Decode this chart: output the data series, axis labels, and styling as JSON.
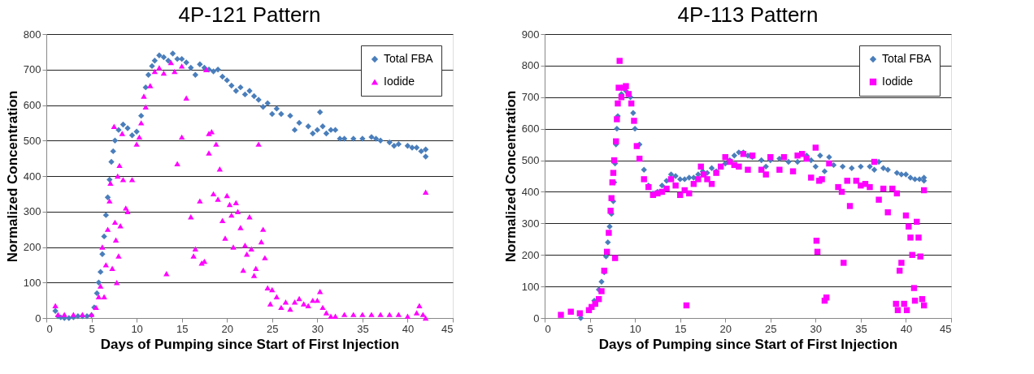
{
  "chart_data": [
    {
      "type": "scatter",
      "title": "4P-121 Pattern",
      "xlabel": "Days of Pumping since Start of First Injection",
      "ylabel": "Normalized Concentration",
      "xlim": [
        0,
        45
      ],
      "xticks": [
        0,
        5,
        10,
        15,
        20,
        25,
        30,
        35,
        40,
        45
      ],
      "ylim": [
        0,
        800
      ],
      "yticks": [
        0,
        100,
        200,
        300,
        400,
        500,
        600,
        700,
        800
      ],
      "grid": "y",
      "legend": "top right",
      "series": [
        {
          "name": "Total FBA",
          "color": "#4a7ebb",
          "marker": "diamond",
          "x": [
            1,
            1.3,
            1.6,
            2,
            2.5,
            3,
            3.5,
            4,
            4.5,
            5,
            5.3,
            5.6,
            5.8,
            6,
            6.2,
            6.4,
            6.6,
            6.8,
            7,
            7.2,
            7.4,
            7.6,
            8,
            8.5,
            9,
            9.5,
            10,
            10.5,
            11,
            11.3,
            11.7,
            12,
            12.5,
            13,
            13.5,
            14,
            14.5,
            15,
            15.5,
            16,
            16.5,
            17,
            17.5,
            18,
            18.5,
            19,
            19.5,
            20,
            20.5,
            21,
            21.5,
            22,
            22.5,
            23,
            23.5,
            24,
            24.5,
            25,
            25.5,
            26,
            27,
            27.5,
            28,
            29,
            29.5,
            30,
            30.3,
            30.6,
            31,
            31.5,
            32,
            32.5,
            33,
            34,
            35,
            36,
            36.5,
            37,
            38,
            38.5,
            39,
            40,
            40.5,
            41,
            41.5,
            42,
            42
          ],
          "values": [
            20,
            5,
            2,
            0,
            0,
            2,
            5,
            5,
            5,
            8,
            30,
            70,
            100,
            130,
            180,
            230,
            290,
            340,
            390,
            440,
            470,
            500,
            530,
            545,
            535,
            515,
            525,
            570,
            650,
            685,
            710,
            725,
            740,
            735,
            725,
            745,
            730,
            730,
            720,
            705,
            685,
            715,
            705,
            700,
            695,
            700,
            680,
            670,
            655,
            640,
            650,
            630,
            640,
            625,
            615,
            595,
            605,
            575,
            590,
            575,
            570,
            530,
            550,
            540,
            520,
            530,
            580,
            540,
            520,
            530,
            530,
            505,
            505,
            505,
            505,
            510,
            505,
            500,
            495,
            485,
            490,
            485,
            480,
            480,
            470,
            475,
            455
          ]
        },
        {
          "name": "Iodide",
          "color": "#ff00ff",
          "marker": "triangle",
          "x": [
            1,
            1.3,
            2,
            3,
            4,
            5,
            5.5,
            5.8,
            6,
            6.2,
            6.4,
            6.6,
            6.8,
            7,
            7.1,
            7.3,
            7.5,
            7.6,
            7.7,
            7.8,
            7.9,
            8,
            8.1,
            8.2,
            8.4,
            8.5,
            8.8,
            9,
            9.5,
            10,
            10.3,
            10.5,
            10.8,
            11,
            11.5,
            12,
            12.5,
            13,
            13.3,
            13.8,
            14.2,
            14.5,
            15,
            15,
            15.5,
            16,
            16.3,
            16.5,
            17,
            17.2,
            17.5,
            17.7,
            18,
            18,
            18.3,
            18.5,
            18.8,
            19,
            19.2,
            19.5,
            19.8,
            20,
            20.3,
            20.5,
            20.7,
            21,
            21.2,
            21.5,
            21.8,
            22,
            22.2,
            22.5,
            22.7,
            23,
            23.2,
            23.5,
            23.8,
            24,
            24.2,
            24.5,
            24.8,
            25,
            25.5,
            26,
            26.5,
            27,
            27.5,
            28,
            28.5,
            29,
            29.5,
            30,
            30.3,
            30.6,
            31,
            31.5,
            32,
            33,
            34,
            35,
            36,
            37,
            38,
            39,
            40,
            41,
            41.3,
            41.7,
            42,
            42
          ],
          "values": [
            35,
            10,
            10,
            10,
            10,
            10,
            30,
            60,
            90,
            200,
            60,
            150,
            250,
            330,
            380,
            140,
            540,
            270,
            220,
            100,
            400,
            175,
            430,
            260,
            520,
            390,
            310,
            300,
            390,
            490,
            510,
            550,
            625,
            595,
            655,
            695,
            705,
            690,
            125,
            720,
            695,
            435,
            710,
            510,
            620,
            285,
            175,
            195,
            330,
            155,
            160,
            700,
            520,
            465,
            525,
            350,
            490,
            335,
            420,
            275,
            225,
            345,
            320,
            290,
            200,
            325,
            300,
            255,
            135,
            205,
            180,
            285,
            195,
            120,
            140,
            490,
            215,
            250,
            170,
            85,
            40,
            80,
            60,
            30,
            45,
            25,
            45,
            55,
            40,
            35,
            50,
            50,
            75,
            30,
            15,
            5,
            5,
            10,
            10,
            10,
            10,
            10,
            10,
            10,
            5,
            15,
            35,
            10,
            355,
            0
          ]
        }
      ]
    },
    {
      "type": "scatter",
      "title": "4P-113 Pattern",
      "xlabel": "Days of Pumping since Start of First Injection",
      "ylabel": "Normalized Concentration",
      "xlim": [
        0,
        45
      ],
      "xticks": [
        0,
        5,
        10,
        15,
        20,
        25,
        30,
        35,
        40,
        45
      ],
      "ylim": [
        0,
        900
      ],
      "yticks": [
        0,
        100,
        200,
        300,
        400,
        500,
        600,
        700,
        800,
        900
      ],
      "grid": "y",
      "legend": "top right",
      "series": [
        {
          "name": "Total FBA",
          "color": "#4a7ebb",
          "marker": "diamond",
          "x": [
            4,
            5.5,
            6,
            6.3,
            6.6,
            6.8,
            7,
            7.2,
            7.4,
            7.6,
            7.7,
            7.8,
            7.9,
            8,
            8.1,
            8.5,
            9,
            9.5,
            9.8,
            10,
            10.5,
            11,
            11.5,
            12,
            12.5,
            13,
            13.5,
            14,
            14.5,
            15,
            15.5,
            16,
            16.5,
            17,
            17.5,
            18,
            18.5,
            19,
            20,
            20.5,
            21,
            21.5,
            22,
            22.5,
            23,
            24,
            24.5,
            25,
            26,
            27,
            28,
            29,
            29.5,
            30,
            30.5,
            31,
            31.5,
            32,
            33,
            34,
            35,
            36,
            36.5,
            37,
            37.5,
            38,
            39,
            39.5,
            40,
            40.5,
            41,
            41.5,
            42,
            42
          ],
          "values": [
            0,
            55,
            90,
            115,
            145,
            195,
            240,
            290,
            330,
            370,
            430,
            490,
            550,
            600,
            640,
            710,
            720,
            700,
            650,
            600,
            550,
            470,
            420,
            395,
            400,
            420,
            435,
            455,
            450,
            440,
            440,
            445,
            445,
            455,
            465,
            460,
            475,
            465,
            490,
            500,
            515,
            525,
            525,
            515,
            510,
            500,
            480,
            500,
            505,
            495,
            495,
            515,
            500,
            480,
            515,
            465,
            510,
            485,
            480,
            475,
            480,
            480,
            470,
            495,
            475,
            470,
            460,
            455,
            455,
            445,
            440,
            440,
            445,
            435
          ]
        },
        {
          "name": "Iodide",
          "color": "#ff00ff",
          "marker": "square",
          "x": [
            1.8,
            2.9,
            3.9,
            4.9,
            5.2,
            5.6,
            6,
            6.3,
            6.6,
            6.9,
            7.1,
            7.3,
            7.4,
            7.5,
            7.6,
            7.7,
            7.8,
            7.9,
            8,
            8.1,
            8.2,
            8.3,
            8.5,
            8.8,
            9,
            9.3,
            9.6,
            9.9,
            10.2,
            10.5,
            11,
            11.5,
            12,
            12.5,
            13,
            13.5,
            14,
            14.5,
            15,
            15.5,
            15.7,
            16,
            16.5,
            17,
            17.3,
            17.6,
            18,
            18.5,
            19,
            19.5,
            20,
            20.5,
            21,
            21.5,
            22,
            22.5,
            23,
            24,
            24.5,
            25,
            26,
            26.5,
            27.5,
            28,
            28.5,
            29,
            29.5,
            30,
            30.1,
            30.2,
            30.4,
            30.7,
            31,
            31.2,
            31.5,
            32.5,
            32.9,
            33.1,
            33.5,
            33.8,
            34.5,
            35,
            35.5,
            36,
            36.5,
            37,
            37.5,
            38,
            38.5,
            39,
            38.9,
            39.1,
            39.3,
            39.5,
            39.8,
            40,
            40.1,
            40.3,
            40.5,
            40.7,
            40.9,
            41,
            41.2,
            41.4,
            41.6,
            41.8,
            42,
            42
          ],
          "values": [
            10,
            20,
            15,
            25,
            35,
            45,
            60,
            85,
            150,
            210,
            270,
            340,
            380,
            430,
            460,
            500,
            190,
            560,
            630,
            680,
            730,
            815,
            700,
            730,
            735,
            710,
            680,
            625,
            545,
            505,
            440,
            415,
            390,
            395,
            400,
            410,
            440,
            420,
            390,
            405,
            40,
            395,
            425,
            440,
            480,
            455,
            440,
            425,
            460,
            480,
            510,
            495,
            485,
            480,
            520,
            470,
            515,
            470,
            455,
            510,
            470,
            510,
            465,
            515,
            520,
            505,
            445,
            540,
            245,
            210,
            435,
            440,
            55,
            65,
            490,
            415,
            400,
            175,
            435,
            355,
            435,
            420,
            425,
            415,
            495,
            375,
            410,
            335,
            410,
            395,
            45,
            25,
            150,
            175,
            45,
            325,
            25,
            290,
            255,
            200,
            95,
            55,
            305,
            255,
            195,
            60,
            40,
            405
          ]
        }
      ]
    }
  ]
}
